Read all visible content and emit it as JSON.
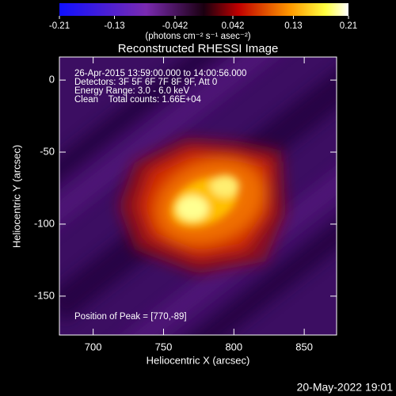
{
  "chart_data": {
    "type": "image",
    "title": "Reconstructed RHESSI Image",
    "colorbar": {
      "label": "(photons cm⁻² s⁻¹ asec⁻²)",
      "clim": [
        -0.21,
        0.21
      ],
      "ticks": [
        -0.21,
        -0.13,
        -0.042,
        0.042,
        0.13,
        0.21
      ]
    },
    "xlabel": "Heliocentric X (arcsec)",
    "ylabel": "Heliocentric Y (arcsec)",
    "xlim": [
      676,
      873
    ],
    "ylim": [
      -177,
      16
    ],
    "xticks": [
      700,
      750,
      800,
      850
    ],
    "yticks": [
      0,
      -50,
      -100,
      -150
    ],
    "annotations": [
      "26-Apr-2015 13:59:00.000 to 14:00:56.000",
      "Detectors: 3F 5F 6F 7F 8F 9F, Att 0",
      "Energy Range: 3.0 - 6.0 keV",
      "Clean    Total counts: 1.66E+04"
    ],
    "peak_text": "Position of Peak = [770,-89]",
    "footer": "20-May-2022 19:01"
  }
}
